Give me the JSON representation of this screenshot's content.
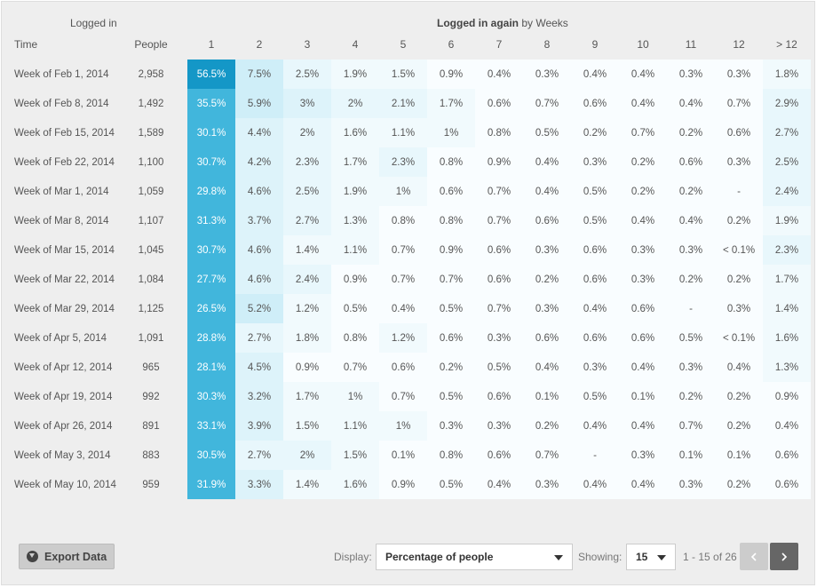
{
  "header": {
    "logged_in": "Logged in",
    "logged_in_again": "Logged in again",
    "by_weeks": "by Weeks"
  },
  "columns": {
    "time": "Time",
    "people": "People",
    "weeks": [
      "1",
      "2",
      "3",
      "4",
      "5",
      "6",
      "7",
      "8",
      "9",
      "10",
      "11",
      "12",
      "> 12"
    ]
  },
  "rows": [
    {
      "time": "Week of Feb 1, 2014",
      "people": "2,958",
      "values": [
        "56.5%",
        "7.5%",
        "2.5%",
        "1.9%",
        "1.5%",
        "0.9%",
        "0.4%",
        "0.3%",
        "0.4%",
        "0.4%",
        "0.3%",
        "0.3%",
        "1.8%"
      ]
    },
    {
      "time": "Week of Feb 8, 2014",
      "people": "1,492",
      "values": [
        "35.5%",
        "5.9%",
        "3%",
        "2%",
        "2.1%",
        "1.7%",
        "0.6%",
        "0.7%",
        "0.6%",
        "0.4%",
        "0.4%",
        "0.7%",
        "2.9%"
      ]
    },
    {
      "time": "Week of Feb 15, 2014",
      "people": "1,589",
      "values": [
        "30.1%",
        "4.4%",
        "2%",
        "1.6%",
        "1.1%",
        "1%",
        "0.8%",
        "0.5%",
        "0.2%",
        "0.7%",
        "0.2%",
        "0.6%",
        "2.7%"
      ]
    },
    {
      "time": "Week of Feb 22, 2014",
      "people": "1,100",
      "values": [
        "30.7%",
        "4.2%",
        "2.3%",
        "1.7%",
        "2.3%",
        "0.8%",
        "0.9%",
        "0.4%",
        "0.3%",
        "0.2%",
        "0.6%",
        "0.3%",
        "2.5%"
      ]
    },
    {
      "time": "Week of Mar 1, 2014",
      "people": "1,059",
      "values": [
        "29.8%",
        "4.6%",
        "2.5%",
        "1.9%",
        "1%",
        "0.6%",
        "0.7%",
        "0.4%",
        "0.5%",
        "0.2%",
        "0.2%",
        "-",
        "2.4%"
      ]
    },
    {
      "time": "Week of Mar 8, 2014",
      "people": "1,107",
      "values": [
        "31.3%",
        "3.7%",
        "2.7%",
        "1.3%",
        "0.8%",
        "0.8%",
        "0.7%",
        "0.6%",
        "0.5%",
        "0.4%",
        "0.4%",
        "0.2%",
        "1.9%"
      ]
    },
    {
      "time": "Week of Mar 15, 2014",
      "people": "1,045",
      "values": [
        "30.7%",
        "4.6%",
        "1.4%",
        "1.1%",
        "0.7%",
        "0.9%",
        "0.6%",
        "0.3%",
        "0.6%",
        "0.3%",
        "0.3%",
        "< 0.1%",
        "2.3%"
      ]
    },
    {
      "time": "Week of Mar 22, 2014",
      "people": "1,084",
      "values": [
        "27.7%",
        "4.6%",
        "2.4%",
        "0.9%",
        "0.7%",
        "0.7%",
        "0.6%",
        "0.2%",
        "0.6%",
        "0.3%",
        "0.2%",
        "0.2%",
        "1.7%"
      ]
    },
    {
      "time": "Week of Mar 29, 2014",
      "people": "1,125",
      "values": [
        "26.5%",
        "5.2%",
        "1.2%",
        "0.5%",
        "0.4%",
        "0.5%",
        "0.7%",
        "0.3%",
        "0.4%",
        "0.6%",
        "-",
        "0.3%",
        "1.4%"
      ]
    },
    {
      "time": "Week of Apr 5, 2014",
      "people": "1,091",
      "values": [
        "28.8%",
        "2.7%",
        "1.8%",
        "0.8%",
        "1.2%",
        "0.6%",
        "0.3%",
        "0.6%",
        "0.6%",
        "0.6%",
        "0.5%",
        "< 0.1%",
        "1.6%"
      ]
    },
    {
      "time": "Week of Apr 12, 2014",
      "people": "965",
      "values": [
        "28.1%",
        "4.5%",
        "0.9%",
        "0.7%",
        "0.6%",
        "0.2%",
        "0.5%",
        "0.4%",
        "0.3%",
        "0.4%",
        "0.3%",
        "0.4%",
        "1.3%"
      ]
    },
    {
      "time": "Week of Apr 19, 2014",
      "people": "992",
      "values": [
        "30.3%",
        "3.2%",
        "1.7%",
        "1%",
        "0.7%",
        "0.5%",
        "0.6%",
        "0.1%",
        "0.5%",
        "0.1%",
        "0.2%",
        "0.2%",
        "0.9%"
      ]
    },
    {
      "time": "Week of Apr 26, 2014",
      "people": "891",
      "values": [
        "33.1%",
        "3.9%",
        "1.5%",
        "1.1%",
        "1%",
        "0.3%",
        "0.3%",
        "0.2%",
        "0.4%",
        "0.4%",
        "0.7%",
        "0.2%",
        "0.4%"
      ]
    },
    {
      "time": "Week of May 3, 2014",
      "people": "883",
      "values": [
        "30.5%",
        "2.7%",
        "2%",
        "1.5%",
        "0.1%",
        "0.8%",
        "0.6%",
        "0.7%",
        "-",
        "0.3%",
        "0.1%",
        "0.1%",
        "0.6%"
      ]
    },
    {
      "time": "Week of May 10, 2014",
      "people": "959",
      "values": [
        "31.9%",
        "3.3%",
        "1.4%",
        "1.6%",
        "0.9%",
        "0.5%",
        "0.4%",
        "0.3%",
        "0.4%",
        "0.4%",
        "0.3%",
        "0.2%",
        "0.6%"
      ]
    }
  ],
  "footer": {
    "export_label": "Export Data",
    "display_label": "Display:",
    "display_value": "Percentage of people",
    "showing_label": "Showing:",
    "showing_value": "15",
    "range_text": "1 - 15 of 26"
  },
  "icons": {
    "export": "download-icon",
    "prev": "chevron-left-icon",
    "next": "chevron-right-icon",
    "dropdown": "caret-down-icon"
  },
  "colors": {
    "accent": "#41b6dc",
    "accent_dark": "#1497c7",
    "bg": "#eeeeee",
    "pager_active": "#666666",
    "pager_disabled": "#cccccc"
  }
}
